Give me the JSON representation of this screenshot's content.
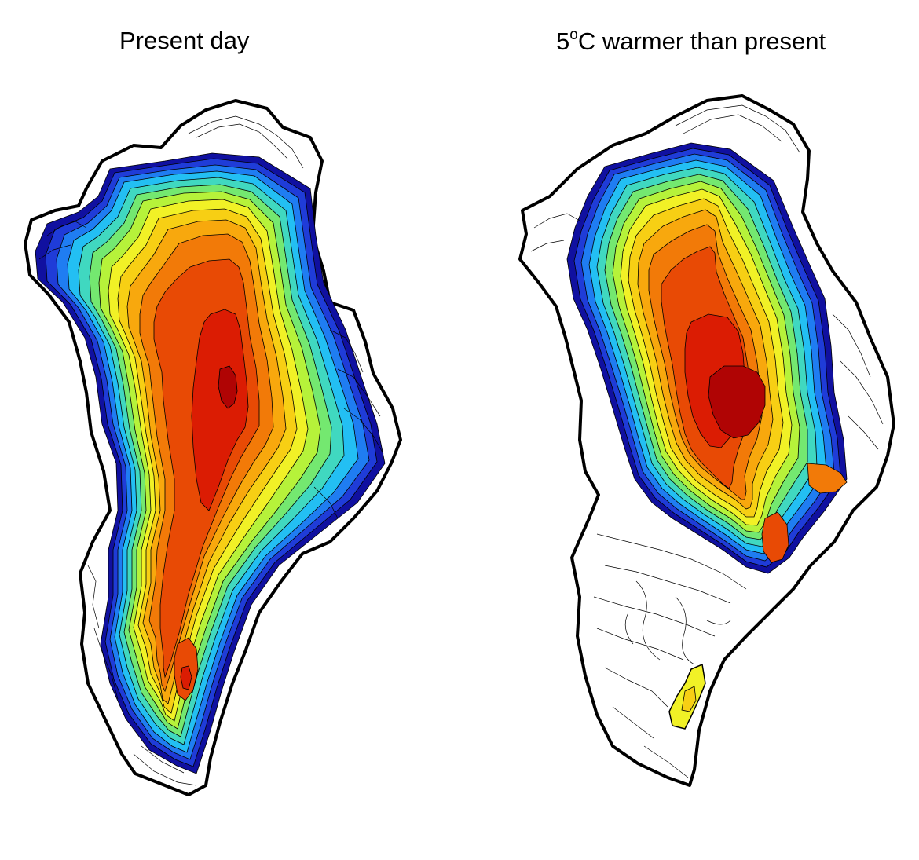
{
  "panels": [
    {
      "title": "Present day"
    },
    {
      "title_prefix": "5",
      "title_sup": "o",
      "title_suffix": "C warmer than present"
    }
  ],
  "colormap": [
    "#1010a0",
    "#1f3cd8",
    "#1f7df2",
    "#23bff3",
    "#40d8c0",
    "#74e870",
    "#b6f23a",
    "#f1f126",
    "#f7cf14",
    "#f8a80d",
    "#f27a08",
    "#e84a05",
    "#db1c03",
    "#b00404"
  ]
}
